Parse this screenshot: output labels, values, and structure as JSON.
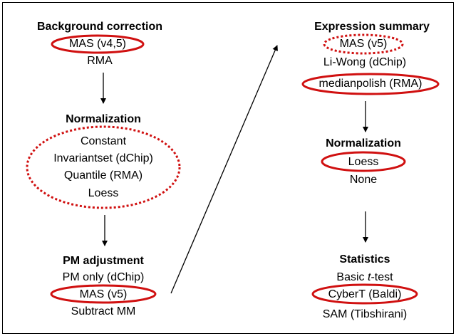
{
  "blocks": [
    {
      "title": "Background correction",
      "items": [
        "MAS (v4,5)",
        "RMA"
      ]
    },
    {
      "title": "Normalization",
      "items": [
        "Constant",
        "Invariantset (dChip)",
        "Quantile (RMA)",
        "Loess"
      ]
    },
    {
      "title": "PM adjustment",
      "items": [
        "PM only (dChip)",
        "MAS (v5)",
        "Subtract MM"
      ]
    },
    {
      "title": "Expression summary",
      "items": [
        "MAS (v5)",
        "Li-Wong (dChip)",
        "medianpolish (RMA)"
      ]
    },
    {
      "title": "Normalization",
      "items": [
        "Loess",
        "None"
      ]
    },
    {
      "title": "Statistics",
      "items": [
        [
          "Basic ",
          "t",
          "-test"
        ],
        "CyberT (Baldi)",
        "SAM (Tibshirani)"
      ]
    }
  ]
}
